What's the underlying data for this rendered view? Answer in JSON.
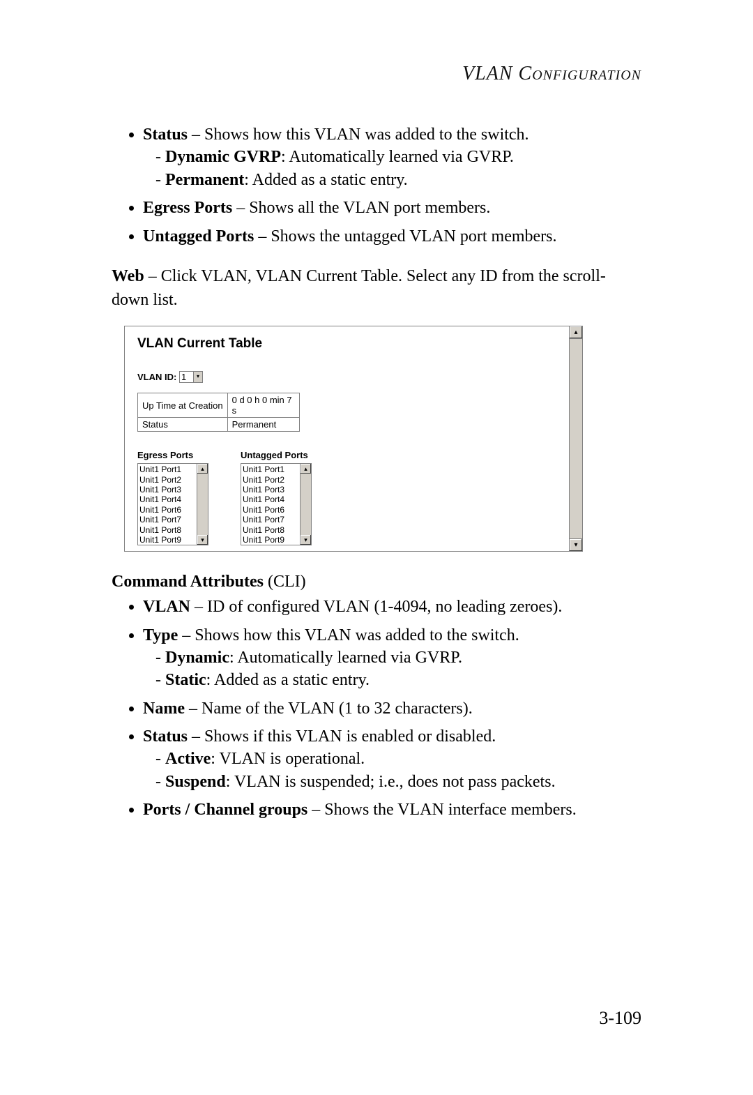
{
  "header": {
    "title": "VLAN Configuration"
  },
  "top_bullets": {
    "status": {
      "term": "Status",
      "desc": " – Shows how this VLAN was added to the switch.",
      "sub1_term": "Dynamic GVRP",
      "sub1_desc": ": Automatically learned via GVRP.",
      "sub2_term": "Permanent",
      "sub2_desc": ": Added as a static entry."
    },
    "egress": {
      "term": "Egress Ports",
      "desc": " – Shows all the VLAN port members."
    },
    "untagged": {
      "term": "Untagged Ports",
      "desc": " – Shows the untagged VLAN port members."
    }
  },
  "web_line": {
    "term": "Web",
    "desc": " – Click VLAN, VLAN Current Table. Select any ID from the scroll-down list."
  },
  "screenshot": {
    "title": "VLAN Current Table",
    "vlan_id_label": "VLAN ID:",
    "vlan_id_value": "1",
    "row1_label": "Up Time at Creation",
    "row1_value": "0 d 0 h 0 min 7 s",
    "row2_label": "Status",
    "row2_value": "Permanent",
    "egress_title": "Egress Ports",
    "untagged_title": "Untagged Ports",
    "egress_ports": [
      "Unit1 Port1",
      "Unit1 Port2",
      "Unit1 Port3",
      "Unit1 Port4",
      "Unit1 Port6",
      "Unit1 Port7",
      "Unit1 Port8",
      "Unit1 Port9"
    ],
    "untagged_ports": [
      "Unit1 Port1",
      "Unit1 Port2",
      "Unit1 Port3",
      "Unit1 Port4",
      "Unit1 Port6",
      "Unit1 Port7",
      "Unit1 Port8",
      "Unit1 Port9"
    ]
  },
  "cmd_attr": {
    "title_bold": "Command Attributes",
    "title_rest": " (CLI)",
    "vlan": {
      "term": "VLAN",
      "desc": " – ID of configured VLAN (1-4094, no leading zeroes)."
    },
    "type": {
      "term": "Type",
      "desc": " – Shows how this VLAN was added to the switch.",
      "sub1_term": "Dynamic",
      "sub1_desc": ": Automatically learned via GVRP.",
      "sub2_term": "Static",
      "sub2_desc": ": Added as a static entry."
    },
    "name": {
      "term": "Name",
      "desc": " – Name of the VLAN (1 to 32 characters)."
    },
    "status": {
      "term": "Status",
      "desc": " – Shows if this VLAN is enabled or disabled.",
      "sub1_term": "Active",
      "sub1_desc": ": VLAN is operational.",
      "sub2_term": "Suspend",
      "sub2_desc": ": VLAN is suspended; i.e., does not pass packets."
    },
    "ports": {
      "term": "Ports / Channel groups",
      "desc": " – Shows the VLAN interface members."
    }
  },
  "page_number": "3-109"
}
